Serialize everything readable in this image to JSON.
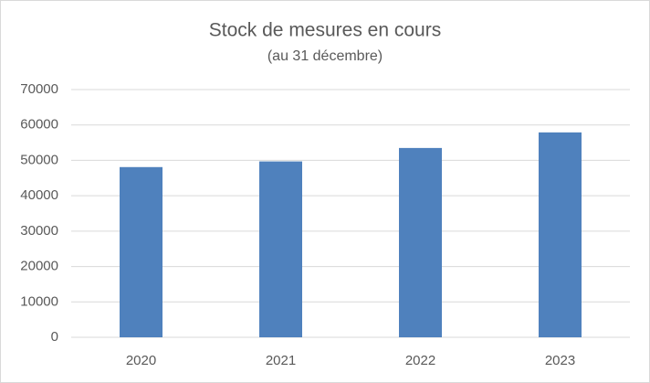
{
  "chart_data": {
    "type": "bar",
    "title": "Stock de mesures en cours",
    "subtitle": "(au 31 décembre)",
    "categories": [
      "2020",
      "2021",
      "2022",
      "2023"
    ],
    "values": [
      48100,
      49700,
      53500,
      57900
    ],
    "color": "#4f81bd",
    "ylim": [
      0,
      70000
    ],
    "yticks": [
      0,
      10000,
      20000,
      30000,
      40000,
      50000,
      60000,
      70000
    ],
    "grid": true
  }
}
